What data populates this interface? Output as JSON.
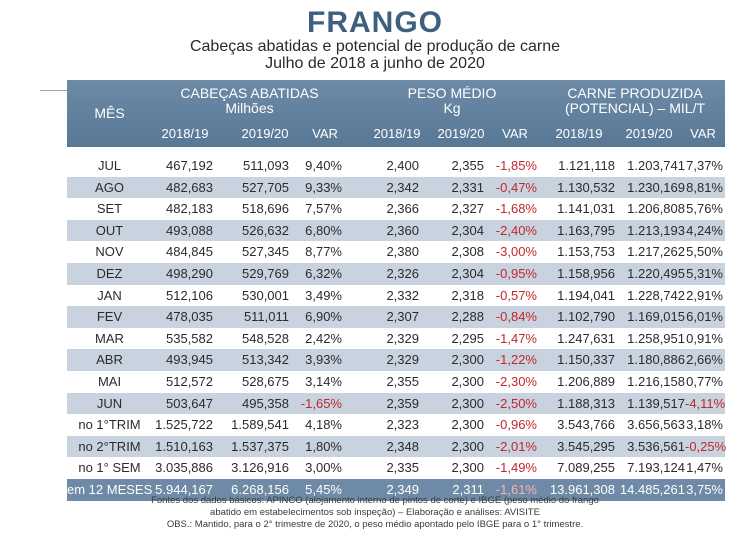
{
  "title": "FRANGO",
  "subtitle_line1": "Cabeças abatidas e potencial de produção de carne",
  "subtitle_line2": "Julho de 2018 a junho de 2020",
  "header": {
    "mes": "MÊS",
    "cab_title1": "CABEÇAS ABATIDAS",
    "cab_title2": "Milhões",
    "peso_title1": "PESO MÉDIO",
    "peso_title2": "Kg",
    "carne_title1": "CARNE PRODUZIDA",
    "carne_title2": "(POTENCIAL) – MIL/T",
    "cab_y1": "2018/19",
    "cab_y2": "2019/20",
    "cab_var": "VAR",
    "peso_y1": "2018/19",
    "peso_y2": "2019/20",
    "peso_var": "VAR",
    "carne_y1": "2018/19",
    "carne_y2": "2019/20",
    "carne_var": "VAR"
  },
  "rows": [
    {
      "mes": "JUL",
      "c1": "467,192",
      "c2": "511,093",
      "cv": "9,40%",
      "p1": "2,400",
      "p2": "2,355",
      "pv": "-1,85%",
      "k1": "1.121,118",
      "k2": "1.203,741",
      "kv": "7,37%"
    },
    {
      "mes": "AGO",
      "c1": "482,683",
      "c2": "527,705",
      "cv": "9,33%",
      "p1": "2,342",
      "p2": "2,331",
      "pv": "-0,47%",
      "k1": "1.130,532",
      "k2": "1.230,169",
      "kv": "8,81%"
    },
    {
      "mes": "SET",
      "c1": "482,183",
      "c2": "518,696",
      "cv": "7,57%",
      "p1": "2,366",
      "p2": "2,327",
      "pv": "-1,68%",
      "k1": "1.141,031",
      "k2": "1.206,808",
      "kv": "5,76%"
    },
    {
      "mes": "OUT",
      "c1": "493,088",
      "c2": "526,632",
      "cv": "6,80%",
      "p1": "2,360",
      "p2": "2,304",
      "pv": "-2,40%",
      "k1": "1.163,795",
      "k2": "1.213,193",
      "kv": "4,24%"
    },
    {
      "mes": "NOV",
      "c1": "484,845",
      "c2": "527,345",
      "cv": "8,77%",
      "p1": "2,380",
      "p2": "2,308",
      "pv": "-3,00%",
      "k1": "1.153,753",
      "k2": "1.217,262",
      "kv": "5,50%"
    },
    {
      "mes": "DEZ",
      "c1": "498,290",
      "c2": "529,769",
      "cv": "6,32%",
      "p1": "2,326",
      "p2": "2,304",
      "pv": "-0,95%",
      "k1": "1.158,956",
      "k2": "1.220,495",
      "kv": "5,31%"
    },
    {
      "mes": "JAN",
      "c1": "512,106",
      "c2": "530,001",
      "cv": "3,49%",
      "p1": "2,332",
      "p2": "2,318",
      "pv": "-0,57%",
      "k1": "1.194,041",
      "k2": "1.228,742",
      "kv": "2,91%"
    },
    {
      "mes": "FEV",
      "c1": "478,035",
      "c2": "511,011",
      "cv": "6,90%",
      "p1": "2,307",
      "p2": "2,288",
      "pv": "-0,84%",
      "k1": "1.102,790",
      "k2": "1.169,015",
      "kv": "6,01%"
    },
    {
      "mes": "MAR",
      "c1": "535,582",
      "c2": "548,528",
      "cv": "2,42%",
      "p1": "2,329",
      "p2": "2,295",
      "pv": "-1,47%",
      "k1": "1.247,631",
      "k2": "1.258,951",
      "kv": "0,91%"
    },
    {
      "mes": "ABR",
      "c1": "493,945",
      "c2": "513,342",
      "cv": "3,93%",
      "p1": "2,329",
      "p2": "2,300",
      "pv": "-1,22%",
      "k1": "1.150,337",
      "k2": "1.180,886",
      "kv": "2,66%"
    },
    {
      "mes": "MAI",
      "c1": "512,572",
      "c2": "528,675",
      "cv": "3,14%",
      "p1": "2,355",
      "p2": "2,300",
      "pv": "-2,30%",
      "k1": "1.206,889",
      "k2": "1.216,158",
      "kv": "0,77%"
    },
    {
      "mes": "JUN",
      "c1": "503,647",
      "c2": "495,358",
      "cv": "-1,65%",
      "p1": "2,359",
      "p2": "2,300",
      "pv": "-2,50%",
      "k1": "1.188,313",
      "k2": "1.139,517",
      "kv": "-4,11%"
    },
    {
      "mes": "no 1°TRIM",
      "c1": "1.525,722",
      "c2": "1.589,541",
      "cv": "4,18%",
      "p1": "2,323",
      "p2": "2,300",
      "pv": "-0,96%",
      "k1": "3.543,766",
      "k2": "3.656,563",
      "kv": "3,18%"
    },
    {
      "mes": "no 2°TRIM",
      "c1": "1.510,163",
      "c2": "1.537,375",
      "cv": "1,80%",
      "p1": "2,348",
      "p2": "2,300",
      "pv": "-2,01%",
      "k1": "3.545,295",
      "k2": "3.536,561",
      "kv": "-0,25%"
    },
    {
      "mes": "no 1° SEM",
      "c1": "3.035,886",
      "c2": "3.126,916",
      "cv": "3,00%",
      "p1": "2,335",
      "p2": "2,300",
      "pv": "-1,49%",
      "k1": "7.089,255",
      "k2": "7.193,124",
      "kv": "1,47%"
    },
    {
      "mes": "em 12 MESES",
      "c1": "5.944,167",
      "c2": "6.268,156",
      "cv": "5,45%",
      "p1": "2,349",
      "p2": "2,311",
      "pv": "-1,61%",
      "k1": "13.961,308",
      "k2": "14.485,261",
      "kv": "3,75%"
    }
  ],
  "footnote_line1": "Fontes dos dados básicos: APINCO (alojamento interno de pintos de corte) e IBGE (peso médio do frango",
  "footnote_line2": "abatido em estabelecimentos sob inspeção) – Elaboração e análises: AVISITE",
  "footnote_line3": "OBS.: Mantido, para o 2° trimestre de 2020, o peso médio apontado pelo IBGE para o 1° trimestre."
}
